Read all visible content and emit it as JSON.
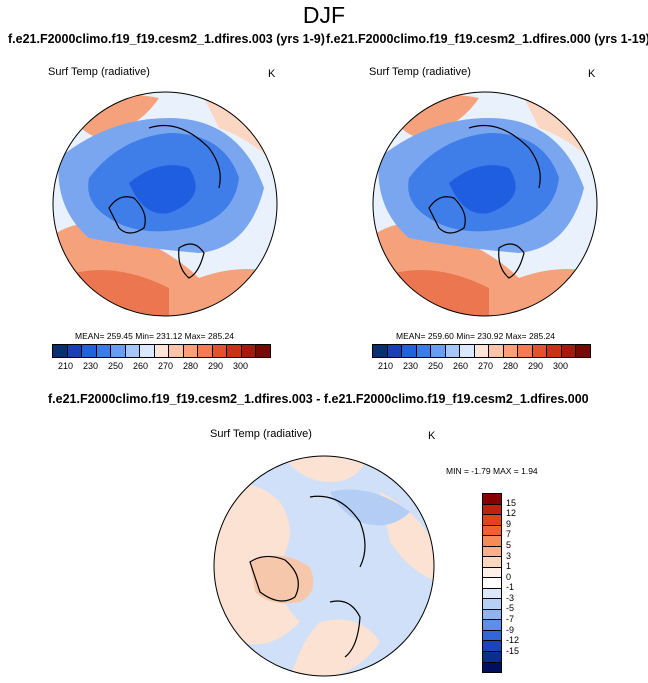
{
  "page_title": "DJF",
  "subtitles": {
    "left": "f.e21.F2000climo.f19_f19.cesm2_1.dfires.003 (yrs 1-9)",
    "right": "f.e21.F2000climo.f19_f19.cesm2_1.dfires.000 (yrs 1-19)",
    "diff": "f.e21.F2000climo.f19_f19.cesm2_1.dfires.003 - f.e21.F2000climo.f19_f19.cesm2_1.dfires.000"
  },
  "panels": [
    {
      "variable": "Surf Temp (radiative)",
      "units": "K",
      "stats": "MEAN= 259.45  Min= 231.12  Max= 285.24"
    },
    {
      "variable": "Surf Temp (radiative)",
      "units": "K",
      "stats": "MEAN= 259.60  Min= 230.92  Max= 285.24"
    },
    {
      "variable": "Surf Temp (radiative)",
      "units": "K",
      "stats": "MIN =  -1.79 MAX =   1.94"
    }
  ],
  "abs_colorbar": {
    "colors": [
      "#08306b",
      "#1a3fb0",
      "#2660d8",
      "#3d7be6",
      "#6a9cf0",
      "#a6c6f5",
      "#d9e8fb",
      "#fbe4d8",
      "#fcc3a8",
      "#f9a07a",
      "#f27a55",
      "#e55130",
      "#cc2e17",
      "#a31a0c",
      "#730a05"
    ],
    "tick_labels": [
      "210",
      "230",
      "250",
      "260",
      "270",
      "280",
      "290",
      "300"
    ]
  },
  "diff_colorbar": {
    "colors": [
      "#870000",
      "#c0200c",
      "#e0451a",
      "#f06030",
      "#f58a5a",
      "#f9b08a",
      "#fcd6bd",
      "#fef0e6",
      "#ffffff",
      "#dbe8fb",
      "#b6cff5",
      "#8fb3ef",
      "#5f8ee6",
      "#3366d9",
      "#1a44b8",
      "#0d2c8c",
      "#00105e"
    ],
    "tick_labels": [
      "15",
      "12",
      "9",
      "7",
      "5",
      "3",
      "1",
      "0",
      "-1",
      "-3",
      "-5",
      "-7",
      "-9",
      "-12",
      "-15"
    ]
  },
  "map_colors": {
    "cold_deep": "#1f5ee0",
    "cold": "#3f7ee8",
    "cool": "#7aa6f0",
    "cool_light": "#b7d0f7",
    "neutral": "#e9f1fc",
    "warm_light": "#fbd6c2",
    "warm": "#f5a27c",
    "hot": "#ec7650",
    "diff_pos": "#fbe2d2",
    "diff_neg": "#cfe0f8",
    "diff_neg2": "#b4cdf5"
  }
}
